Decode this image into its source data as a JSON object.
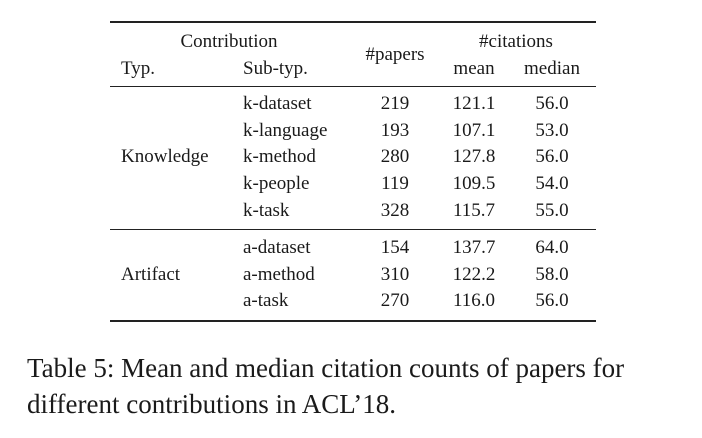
{
  "table": {
    "header": {
      "contribution": "Contribution",
      "typ": "Typ.",
      "subtyp": "Sub-typ.",
      "papers": "#papers",
      "citations": "#citations",
      "mean": "mean",
      "median": "median"
    },
    "groups": [
      {
        "type": "Knowledge",
        "rows": [
          {
            "subtype": "k-dataset",
            "papers": "219",
            "mean": "121.1",
            "median": "56.0"
          },
          {
            "subtype": "k-language",
            "papers": "193",
            "mean": "107.1",
            "median": "53.0"
          },
          {
            "subtype": "k-method",
            "papers": "280",
            "mean": "127.8",
            "median": "56.0"
          },
          {
            "subtype": "k-people",
            "papers": "119",
            "mean": "109.5",
            "median": "54.0"
          },
          {
            "subtype": "k-task",
            "papers": "328",
            "mean": "115.7",
            "median": "55.0"
          }
        ]
      },
      {
        "type": "Artifact",
        "rows": [
          {
            "subtype": "a-dataset",
            "papers": "154",
            "mean": "137.7",
            "median": "64.0"
          },
          {
            "subtype": "a-method",
            "papers": "310",
            "mean": "122.2",
            "median": "58.0"
          },
          {
            "subtype": "a-task",
            "papers": "270",
            "mean": "116.0",
            "median": "56.0"
          }
        ]
      }
    ]
  },
  "caption": "Table 5: Mean and median citation counts of papers for different contributions in ACL’18."
}
